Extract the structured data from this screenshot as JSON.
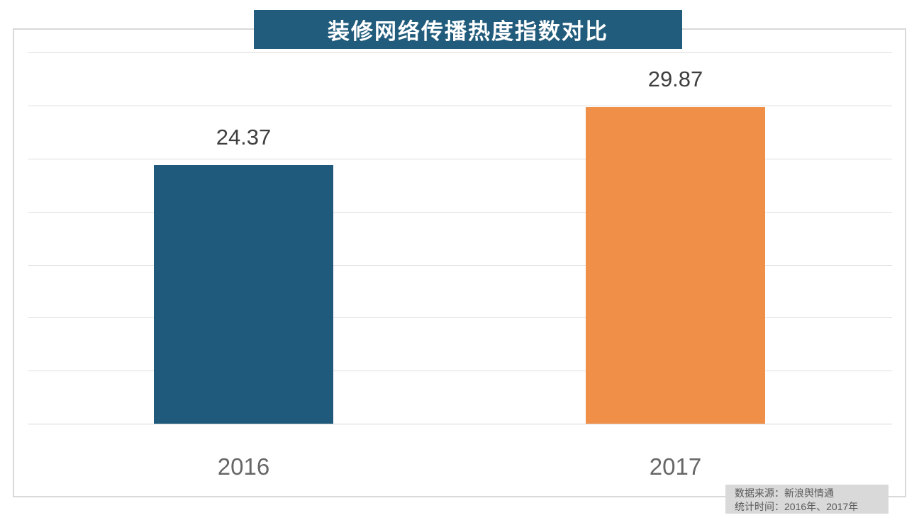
{
  "chart_data": {
    "type": "bar",
    "title": "装修网络传播热度指数对比",
    "categories": [
      "2016",
      "2017"
    ],
    "values": [
      24.37,
      29.87
    ],
    "bar_colors": [
      "#1f5a7c",
      "#ef8f48"
    ],
    "value_label_color": "#3f3f3f",
    "category_label_color": "#666666",
    "xlabel": "",
    "ylabel": "",
    "ylim": [
      0,
      37.3
    ],
    "gridline_step": 5,
    "grid": "horizontal",
    "y_tick_labels_shown": false,
    "legend": "none"
  },
  "header": {
    "bg_color": "#215c7c",
    "text_color": "#ffffff"
  },
  "footer": {
    "source_line": "数据来源：新浪舆情通",
    "time_line": "统计时间：2016年、2017年",
    "bg_color": "#d9d9d9",
    "text_color": "#595959"
  }
}
